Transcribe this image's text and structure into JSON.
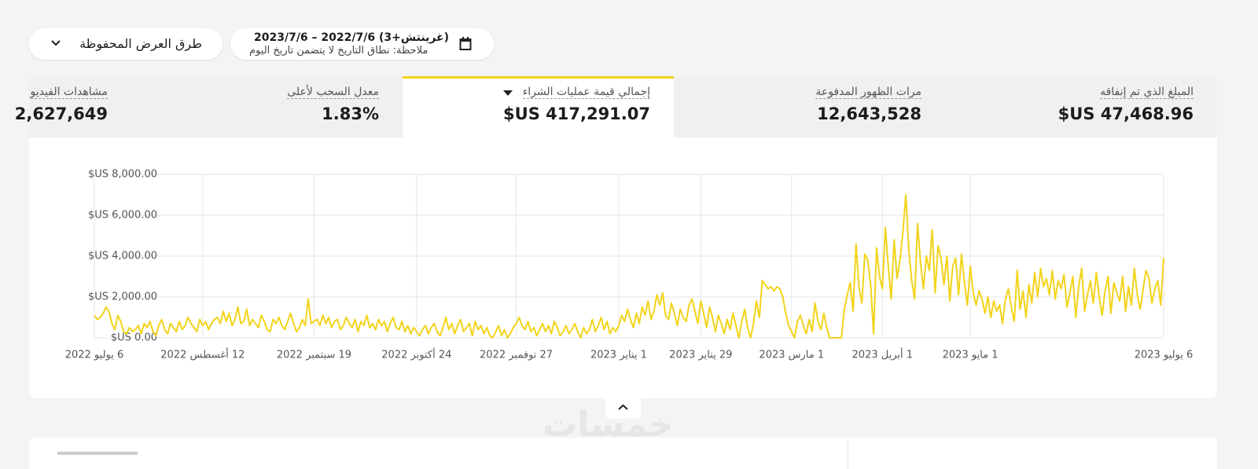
{
  "saved_views": "طرق العرض المحفوظة",
  "date_range": {
    "range": "2023/7/6 – 2022/7/6 (غرينتش+3)",
    "note": "ملاحظة: نطاق التاريخ لا يتضمن تاريخ اليوم"
  },
  "metrics": [
    {
      "label": "المبلغ الذي تم إنفاقه",
      "value": "$US 47,468.96"
    },
    {
      "label": "مرات الظهور المدفوعة",
      "value": "12,643,528"
    },
    {
      "label": "إجمالي قيمة عمليات الشراء",
      "value": "$US 417,291.07"
    },
    {
      "label": "معدل السحب لأعلى",
      "value": "1.83%"
    },
    {
      "label": "مشاهدات الفيديو",
      "value": "2,627,649"
    }
  ],
  "watermark": "خمسات",
  "chart_data": {
    "type": "line",
    "x": [
      "2022-07-06",
      "2022-07-07",
      "2022-07-08",
      "2022-07-09",
      "2022-07-10",
      "2022-07-11",
      "2022-07-12",
      "2022-07-13",
      "2022-07-14",
      "2022-07-15",
      "2022-07-16",
      "2022-07-17",
      "2022-07-18",
      "2022-07-19",
      "2022-07-20",
      "2022-07-21",
      "2022-07-22",
      "2022-07-23",
      "2022-07-24",
      "2022-07-25",
      "2022-07-26",
      "2022-07-27",
      "2022-07-28",
      "2022-07-29",
      "2022-07-30",
      "2022-07-31",
      "2022-08-01",
      "2022-08-02",
      "2022-08-03",
      "2022-08-04",
      "2022-08-05",
      "2022-08-06",
      "2022-08-07",
      "2022-08-08",
      "2022-08-09",
      "2022-08-10",
      "2022-08-11",
      "2022-08-12",
      "2022-08-13",
      "2022-08-14",
      "2022-08-15",
      "2022-08-16",
      "2022-08-17",
      "2022-08-18",
      "2022-08-19",
      "2022-08-20",
      "2022-08-21",
      "2022-08-22",
      "2022-08-23",
      "2022-08-24",
      "2022-08-25",
      "2022-08-26",
      "2022-08-27",
      "2022-08-28",
      "2022-08-29",
      "2022-08-30",
      "2022-08-31",
      "2022-09-01",
      "2022-09-02",
      "2022-09-03",
      "2022-09-04",
      "2022-09-05",
      "2022-09-06",
      "2022-09-07",
      "2022-09-08",
      "2022-09-09",
      "2022-09-10",
      "2022-09-11",
      "2022-09-12",
      "2022-09-13",
      "2022-09-14",
      "2022-09-15",
      "2022-09-16",
      "2022-09-17",
      "2022-09-18",
      "2022-09-19",
      "2022-09-20",
      "2022-09-21",
      "2022-09-22",
      "2022-09-23",
      "2022-09-24",
      "2022-09-25",
      "2022-09-26",
      "2022-09-27",
      "2022-09-28",
      "2022-09-29",
      "2022-09-30",
      "2022-10-01",
      "2022-10-02",
      "2022-10-03",
      "2022-10-04",
      "2022-10-05",
      "2022-10-06",
      "2022-10-07",
      "2022-10-08",
      "2022-10-09",
      "2022-10-10",
      "2022-10-11",
      "2022-10-12",
      "2022-10-13",
      "2022-10-14",
      "2022-10-15",
      "2022-10-16",
      "2022-10-17",
      "2022-10-18",
      "2022-10-19",
      "2022-10-20",
      "2022-10-21",
      "2022-10-22",
      "2022-10-23",
      "2022-10-24",
      "2022-10-25",
      "2022-10-26",
      "2022-10-27",
      "2022-10-28",
      "2022-10-29",
      "2022-10-30",
      "2022-10-31",
      "2022-11-01",
      "2022-11-02",
      "2022-11-03",
      "2022-11-04",
      "2022-11-05",
      "2022-11-06",
      "2022-11-07",
      "2022-11-08",
      "2022-11-09",
      "2022-11-10",
      "2022-11-11",
      "2022-11-12",
      "2022-11-13",
      "2022-11-14",
      "2022-11-15",
      "2022-11-16",
      "2022-11-17",
      "2022-11-18",
      "2022-11-19",
      "2022-11-20",
      "2022-11-21",
      "2022-11-22",
      "2022-11-23",
      "2022-11-24",
      "2022-11-25",
      "2022-11-26",
      "2022-11-27",
      "2022-11-28",
      "2022-11-29",
      "2022-11-30",
      "2022-12-01",
      "2022-12-02",
      "2022-12-03",
      "2022-12-04",
      "2022-12-05",
      "2022-12-06",
      "2022-12-07",
      "2022-12-08",
      "2022-12-09",
      "2022-12-10",
      "2022-12-11",
      "2022-12-12",
      "2022-12-13",
      "2022-12-14",
      "2022-12-15",
      "2022-12-16",
      "2022-12-17",
      "2022-12-18",
      "2022-12-19",
      "2022-12-20",
      "2022-12-21",
      "2022-12-22",
      "2022-12-23",
      "2022-12-24",
      "2022-12-25",
      "2022-12-26",
      "2022-12-27",
      "2022-12-28",
      "2022-12-29",
      "2022-12-30",
      "2022-12-31",
      "2023-01-01",
      "2023-01-02",
      "2023-01-03",
      "2023-01-04",
      "2023-01-05",
      "2023-01-06",
      "2023-01-07",
      "2023-01-08",
      "2023-01-09",
      "2023-01-10",
      "2023-01-11",
      "2023-01-12",
      "2023-01-13",
      "2023-01-14",
      "2023-01-15",
      "2023-01-16",
      "2023-01-17",
      "2023-01-18",
      "2023-01-19",
      "2023-01-20",
      "2023-01-21",
      "2023-01-22",
      "2023-01-23",
      "2023-01-24",
      "2023-01-25",
      "2023-01-26",
      "2023-01-27",
      "2023-01-28",
      "2023-01-29",
      "2023-01-30",
      "2023-01-31",
      "2023-02-01",
      "2023-02-02",
      "2023-02-03",
      "2023-02-04",
      "2023-02-05",
      "2023-02-06",
      "2023-02-07",
      "2023-02-08",
      "2023-02-09",
      "2023-02-10",
      "2023-02-11",
      "2023-02-12",
      "2023-02-13",
      "2023-02-14",
      "2023-02-15",
      "2023-02-16",
      "2023-02-17",
      "2023-02-18",
      "2023-02-19",
      "2023-02-20",
      "2023-02-21",
      "2023-02-22",
      "2023-02-23",
      "2023-02-24",
      "2023-02-25",
      "2023-02-26",
      "2023-02-27",
      "2023-02-28",
      "2023-03-01",
      "2023-03-02",
      "2023-03-03",
      "2023-03-04",
      "2023-03-05",
      "2023-03-06",
      "2023-03-07",
      "2023-03-08",
      "2023-03-09",
      "2023-03-10",
      "2023-03-11",
      "2023-03-12",
      "2023-03-13",
      "2023-03-14",
      "2023-03-15",
      "2023-03-16",
      "2023-03-17",
      "2023-03-18",
      "2023-03-19",
      "2023-03-20",
      "2023-03-21",
      "2023-03-22",
      "2023-03-23",
      "2023-03-24",
      "2023-03-25",
      "2023-03-26",
      "2023-03-27",
      "2023-03-28",
      "2023-03-29",
      "2023-03-30",
      "2023-03-31",
      "2023-04-01",
      "2023-04-02",
      "2023-04-03",
      "2023-04-04",
      "2023-04-05",
      "2023-04-06",
      "2023-04-07",
      "2023-04-08",
      "2023-04-09",
      "2023-04-10",
      "2023-04-11",
      "2023-04-12",
      "2023-04-13",
      "2023-04-14",
      "2023-04-15",
      "2023-04-16",
      "2023-04-17",
      "2023-04-18",
      "2023-04-19",
      "2023-04-20",
      "2023-04-21",
      "2023-04-22",
      "2023-04-23",
      "2023-04-24",
      "2023-04-25",
      "2023-04-26",
      "2023-04-27",
      "2023-04-28",
      "2023-04-29",
      "2023-04-30",
      "2023-05-01",
      "2023-05-02",
      "2023-05-03",
      "2023-05-04",
      "2023-05-05",
      "2023-05-06",
      "2023-05-07",
      "2023-05-08",
      "2023-05-09",
      "2023-05-10",
      "2023-05-11",
      "2023-05-12",
      "2023-05-13",
      "2023-05-14",
      "2023-05-15",
      "2023-05-16",
      "2023-05-17",
      "2023-05-18",
      "2023-05-19",
      "2023-05-20",
      "2023-05-21",
      "2023-05-22",
      "2023-05-23",
      "2023-05-24",
      "2023-05-25",
      "2023-05-26",
      "2023-05-27",
      "2023-05-28",
      "2023-05-29",
      "2023-05-30",
      "2023-05-31",
      "2023-06-01",
      "2023-06-02",
      "2023-06-03",
      "2023-06-04",
      "2023-06-05",
      "2023-06-06",
      "2023-06-07",
      "2023-06-08",
      "2023-06-09",
      "2023-06-10",
      "2023-06-11",
      "2023-06-12",
      "2023-06-13",
      "2023-06-14",
      "2023-06-15",
      "2023-06-16",
      "2023-06-17",
      "2023-06-18",
      "2023-06-19",
      "2023-06-20",
      "2023-06-21",
      "2023-06-22",
      "2023-06-23",
      "2023-06-24",
      "2023-06-25",
      "2023-06-26",
      "2023-06-27",
      "2023-06-28",
      "2023-06-29",
      "2023-06-30",
      "2023-07-01",
      "2023-07-02",
      "2023-07-03",
      "2023-07-04",
      "2023-07-05",
      "2023-07-06"
    ],
    "series": [
      {
        "color": "#f2d31b",
        "values": [
          1100,
          900,
          1000,
          1200,
          1500,
          1300,
          700,
          400,
          1100,
          800,
          300,
          200,
          500,
          300,
          400,
          600,
          200,
          700,
          500,
          800,
          300,
          100,
          600,
          900,
          400,
          200,
          700,
          500,
          300,
          800,
          400,
          600,
          1000,
          700,
          500,
          300,
          900,
          600,
          800,
          400,
          700,
          900,
          1000,
          700,
          1300,
          800,
          1200,
          600,
          900,
          1500,
          700,
          800,
          1400,
          600,
          900,
          700,
          500,
          1100,
          800,
          400,
          300,
          900,
          700,
          1000,
          600,
          400,
          800,
          1200,
          700,
          300,
          500,
          900,
          600,
          1900,
          700,
          800,
          900,
          600,
          1100,
          700,
          1000,
          500,
          800,
          900,
          400,
          600,
          1000,
          700,
          500,
          900,
          300,
          800,
          600,
          1100,
          500,
          700,
          400,
          900,
          600,
          800,
          300,
          700,
          1000,
          500,
          400,
          800,
          300,
          600,
          200,
          500,
          300,
          100,
          400,
          600,
          200,
          500,
          700,
          300,
          100,
          500,
          1000,
          400,
          700,
          200,
          600,
          900,
          300,
          500,
          700,
          100,
          800,
          400,
          600,
          200,
          500,
          100,
          0,
          300,
          600,
          100,
          400,
          0,
          200,
          500,
          700,
          1000,
          600,
          400,
          800,
          300,
          500,
          100,
          400,
          700,
          300,
          600,
          200,
          800,
          500,
          100,
          300,
          600,
          200,
          400,
          700,
          300,
          0,
          500,
          200,
          400,
          900,
          300,
          600,
          1000,
          400,
          800,
          200,
          500,
          300,
          600,
          1100,
          800,
          1400,
          900,
          500,
          1200,
          700,
          1500,
          1100,
          1800,
          900,
          1300,
          2100,
          1600,
          2200,
          1100,
          900,
          1700,
          1200,
          600,
          1400,
          1000,
          800,
          1600,
          1900,
          1300,
          700,
          1800,
          1200,
          500,
          1500,
          1000,
          300,
          1100,
          700,
          200,
          900,
          400,
          1200,
          600,
          0,
          800,
          1400,
          500,
          0,
          700,
          1800,
          1000,
          2800,
          2600,
          2400,
          2500,
          2300,
          2500,
          2400,
          2000,
          1200,
          600,
          300,
          0,
          800,
          1100,
          600,
          200,
          900,
          300,
          1700,
          800,
          400,
          1200,
          500,
          0,
          0,
          0,
          0,
          0,
          1400,
          2100,
          2700,
          1300,
          4600,
          2500,
          1700,
          4100,
          3800,
          2600,
          200,
          4400,
          3000,
          2400,
          5400,
          3500,
          1900,
          4800,
          2900,
          3800,
          5200,
          7000,
          4300,
          2800,
          1900,
          5600,
          3700,
          2400,
          4000,
          3300,
          5300,
          2200,
          4500,
          3900,
          2600,
          4000,
          1800,
          3500,
          3900,
          2100,
          4100,
          2700,
          1600,
          3500,
          2200,
          1600,
          2300,
          1900,
          1200,
          2000,
          1000,
          1800,
          1300,
          1600,
          700,
          1900,
          2400,
          1500,
          800,
          3300,
          1400,
          2300,
          1000,
          2600,
          1700,
          3200,
          2000,
          3400,
          2500,
          2900,
          2100,
          3300,
          1900,
          2800,
          2400,
          3100,
          1500,
          2200,
          3000,
          1000,
          2500,
          3400,
          1300,
          2100,
          2800,
          1700,
          3200,
          2000,
          1100,
          2300,
          3000,
          1200,
          2700,
          2200,
          1800,
          3000,
          1300,
          2500,
          1600,
          3400,
          2100,
          1400,
          2400,
          3300,
          2900,
          1700,
          2400,
          2800,
          1600,
          3900
        ]
      }
    ],
    "xlim": [
      "2022-07-06",
      "2023-07-06"
    ],
    "xticks": [
      {
        "value": "2022-07-06",
        "label": "6 يوليو 2022"
      },
      {
        "value": "2022-08-12",
        "label": "12 أغسطس 2022"
      },
      {
        "value": "2022-09-19",
        "label": "19 سبتمبر 2022"
      },
      {
        "value": "2022-10-24",
        "label": "24 أكتوبر 2022"
      },
      {
        "value": "2022-11-27",
        "label": "27 نوفمبر 2022"
      },
      {
        "value": "2023-01-01",
        "label": "1 يناير 2023"
      },
      {
        "value": "2023-01-29",
        "label": "29 يناير 2023"
      },
      {
        "value": "2023-03-01",
        "label": "1 مارس 2023"
      },
      {
        "value": "2023-04-01",
        "label": "1 أبريل 2023"
      },
      {
        "value": "2023-05-01",
        "label": "1 مايو 2023"
      },
      {
        "value": "2023-07-06",
        "label": "6 يوليو 2023"
      }
    ],
    "ylim": [
      0,
      8000
    ],
    "yticks": [
      {
        "value": 0,
        "label": "$US 0.00"
      },
      {
        "value": 2000,
        "label": "$US 2,000.00"
      },
      {
        "value": 4000,
        "label": "$US 4,000.00"
      },
      {
        "value": 6000,
        "label": "$US 6,000.00"
      },
      {
        "value": 8000,
        "label": "$US 8,000.00"
      }
    ],
    "grid": true
  }
}
